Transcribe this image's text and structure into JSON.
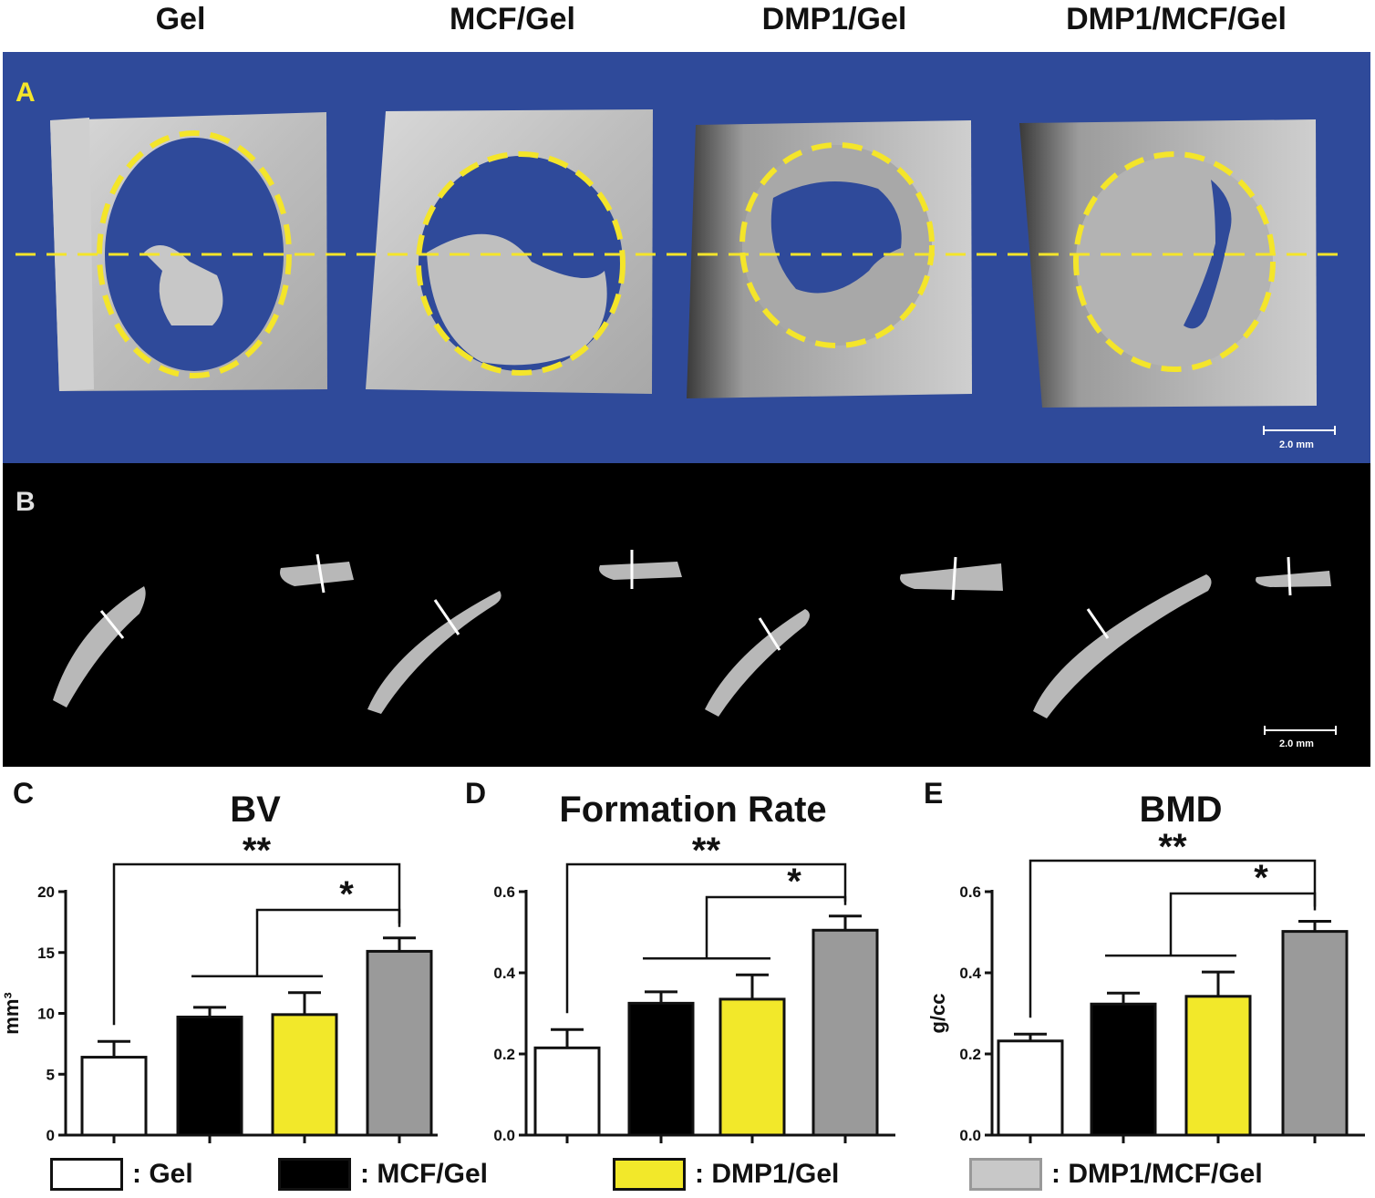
{
  "column_titles": [
    "Gel",
    "MCF/Gel",
    "DMP1/Gel",
    "DMP1/MCF/Gel"
  ],
  "panel_a": {
    "letter": "A",
    "scale_label": "2.0 mm"
  },
  "panel_b": {
    "letter": "B",
    "scale_label": "2.0 mm"
  },
  "colors": {
    "gel": "#ffffff",
    "mcf_gel": "#000000",
    "dmp1_gel": "#f2e82a",
    "dmp1_mcf_gel": "#9a9a9a",
    "dashed_line": "#f4e52a",
    "panel_a_bg": "#2f4a9a"
  },
  "legend": [
    {
      "label": ": Gel",
      "color": "#ffffff"
    },
    {
      "label": ": MCF/Gel",
      "color": "#000000"
    },
    {
      "label": ": DMP1/Gel",
      "color": "#f2e82a"
    },
    {
      "label": ": DMP1/MCF/Gel",
      "color": "#c8c8c8"
    }
  ],
  "chart_data": [
    {
      "letter": "C",
      "type": "bar",
      "title": "BV",
      "ylabel": "mm³",
      "categories": [
        "Gel",
        "MCF/Gel",
        "DMP1/Gel",
        "DMP1/MCF/Gel"
      ],
      "values": [
        6.4,
        9.7,
        9.9,
        15.1
      ],
      "errors": [
        1.3,
        0.8,
        1.8,
        1.1
      ],
      "ylim": [
        0,
        20
      ],
      "yticks": [
        "0",
        "5",
        "10",
        "15",
        "20"
      ],
      "ytick_values": [
        0,
        5,
        10,
        15,
        20
      ],
      "sig_long": "**",
      "sig_short": "*"
    },
    {
      "letter": "D",
      "type": "bar",
      "title": "Formation Rate",
      "ylabel": "",
      "categories": [
        "Gel",
        "MCF/Gel",
        "DMP1/Gel",
        "DMP1/MCF/Gel"
      ],
      "values": [
        0.215,
        0.325,
        0.335,
        0.505
      ],
      "errors": [
        0.045,
        0.028,
        0.06,
        0.035
      ],
      "ylim": [
        0,
        0.6
      ],
      "yticks": [
        "0.0",
        "0.2",
        "0.4",
        "0.6"
      ],
      "ytick_values": [
        0,
        0.2,
        0.4,
        0.6
      ],
      "sig_long": "**",
      "sig_short": "*"
    },
    {
      "letter": "E",
      "type": "bar",
      "title": "BMD",
      "ylabel": "g/cc",
      "categories": [
        "Gel",
        "MCF/Gel",
        "DMP1/Gel",
        "DMP1/MCF/Gel"
      ],
      "values": [
        0.232,
        0.323,
        0.342,
        0.502
      ],
      "errors": [
        0.017,
        0.027,
        0.06,
        0.025
      ],
      "ylim": [
        0,
        0.6
      ],
      "yticks": [
        "0.0",
        "0.2",
        "0.4",
        "0.6"
      ],
      "ytick_values": [
        0,
        0.2,
        0.4,
        0.6
      ],
      "sig_long": "**",
      "sig_short": "*"
    }
  ]
}
